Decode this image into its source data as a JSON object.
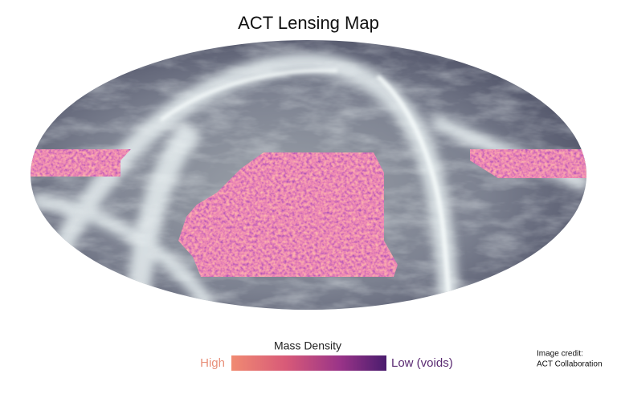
{
  "title": "ACT Lensing Map",
  "colorbar": {
    "label": "Mass Density",
    "high_label": "High",
    "low_label": "Low (voids)"
  },
  "credit": {
    "line1": "Image credit:",
    "line2": "ACT Collaboration"
  }
}
